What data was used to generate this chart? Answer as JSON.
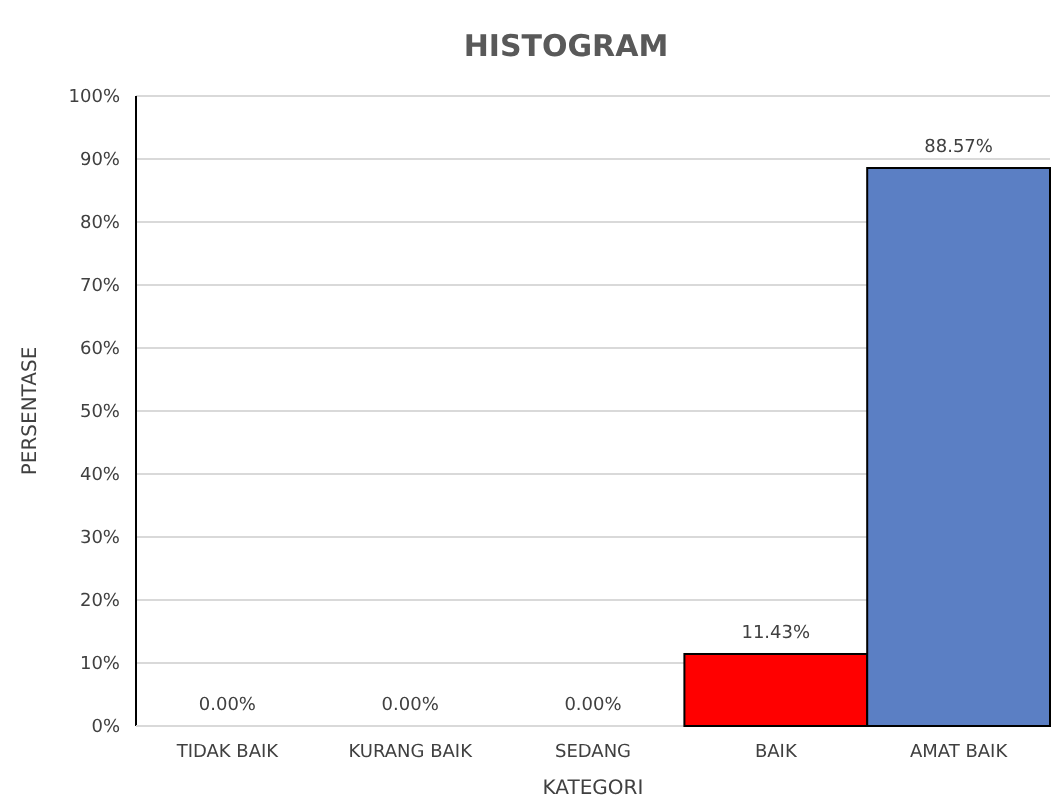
{
  "chart_data": {
    "type": "bar",
    "title": "HISTOGRAM",
    "xlabel": "KATEGORI",
    "ylabel": "PERSENTASE",
    "categories": [
      "TIDAK BAIK",
      "KURANG BAIK",
      "SEDANG",
      "BAIK",
      "AMAT BAIK"
    ],
    "values": [
      0,
      0,
      0,
      11.43,
      88.57
    ],
    "colors": [
      "#5b7fc4",
      "#5b7fc4",
      "#5b7fc4",
      "#ff0000",
      "#5b7fc4"
    ],
    "value_labels": [
      "0.00%",
      "0.00%",
      "0.00%",
      "11.43%",
      "88.57%"
    ],
    "ylim": [
      0,
      100
    ],
    "yticks": [
      {
        "value": 0,
        "label": "0%"
      },
      {
        "value": 10,
        "label": "10%"
      },
      {
        "value": 20,
        "label": "20%"
      },
      {
        "value": 30,
        "label": "30%"
      },
      {
        "value": 40,
        "label": "40%"
      },
      {
        "value": 50,
        "label": "50%"
      },
      {
        "value": 60,
        "label": "60%"
      },
      {
        "value": 70,
        "label": "70%"
      },
      {
        "value": 80,
        "label": "80%"
      },
      {
        "value": 90,
        "label": "90%"
      },
      {
        "value": 100,
        "label": "100%"
      }
    ],
    "grid": "y"
  }
}
